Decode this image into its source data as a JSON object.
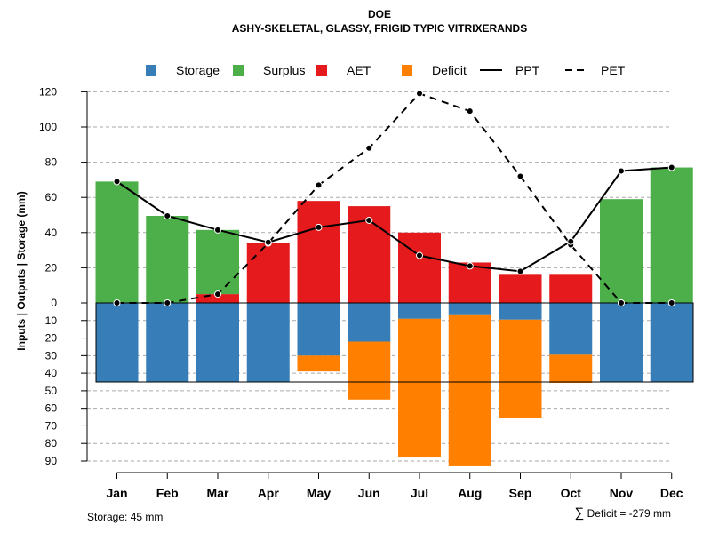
{
  "chart_data": {
    "type": "bar",
    "title": "DOE",
    "subtitle": "ASHY-SKELETAL, GLASSY, FRIGID TYPIC VITRIXERANDS",
    "ylabel": "Inputs | Outputs | Storage     (mm)",
    "categories": [
      "Jan",
      "Feb",
      "Mar",
      "Apr",
      "May",
      "Jun",
      "Jul",
      "Aug",
      "Sep",
      "Oct",
      "Nov",
      "Dec"
    ],
    "upper_ylim": [
      0,
      120
    ],
    "upper_ticks": [
      0,
      20,
      40,
      60,
      80,
      100,
      120
    ],
    "lower_ylim": [
      0,
      90
    ],
    "lower_ticks": [
      0,
      10,
      20,
      30,
      40,
      50,
      60,
      70,
      80,
      90
    ],
    "grid": true,
    "legend_position": "top",
    "legend": [
      {
        "label": "Storage",
        "kind": "box",
        "color": "#377EB8"
      },
      {
        "label": "Surplus",
        "kind": "box",
        "color": "#4DAF4A"
      },
      {
        "label": "AET",
        "kind": "box",
        "color": "#E41A1C"
      },
      {
        "label": "Deficit",
        "kind": "box",
        "color": "#FF7F00"
      },
      {
        "label": "PPT",
        "kind": "solid-line",
        "color": "#000000"
      },
      {
        "label": "PET",
        "kind": "dashed-line",
        "color": "#000000"
      }
    ],
    "colors": {
      "storage": "#377EB8",
      "surplus": "#4DAF4A",
      "aet": "#E41A1C",
      "deficit": "#FF7F00"
    },
    "series": [
      {
        "name": "AET",
        "values": [
          0,
          0,
          5,
          34,
          58,
          55,
          40,
          23,
          16,
          16,
          0,
          0
        ]
      },
      {
        "name": "Surplus",
        "values": [
          69,
          49.5,
          36.5,
          0,
          0,
          0,
          0,
          0,
          0,
          0,
          59,
          77
        ]
      },
      {
        "name": "Storage",
        "values": [
          45,
          45,
          45,
          45,
          30,
          22,
          9,
          7,
          9.5,
          29.5,
          45,
          45
        ]
      },
      {
        "name": "Deficit",
        "values": [
          0,
          0,
          0,
          0,
          9,
          33,
          79,
          86,
          56,
          16,
          0,
          0
        ]
      },
      {
        "name": "PPT",
        "values": [
          69,
          49.5,
          41.5,
          34.5,
          43,
          47,
          27,
          21,
          18,
          35,
          75,
          77
        ]
      },
      {
        "name": "PET",
        "values": [
          0,
          0,
          5,
          34,
          67,
          88,
          119,
          109,
          72,
          33,
          0,
          0
        ]
      }
    ],
    "storage_capacity": 45,
    "footnotes": {
      "storage": "Storage: 45 mm",
      "deficit_symbol": "∑",
      "deficit": "Deficit = -279 mm"
    }
  }
}
